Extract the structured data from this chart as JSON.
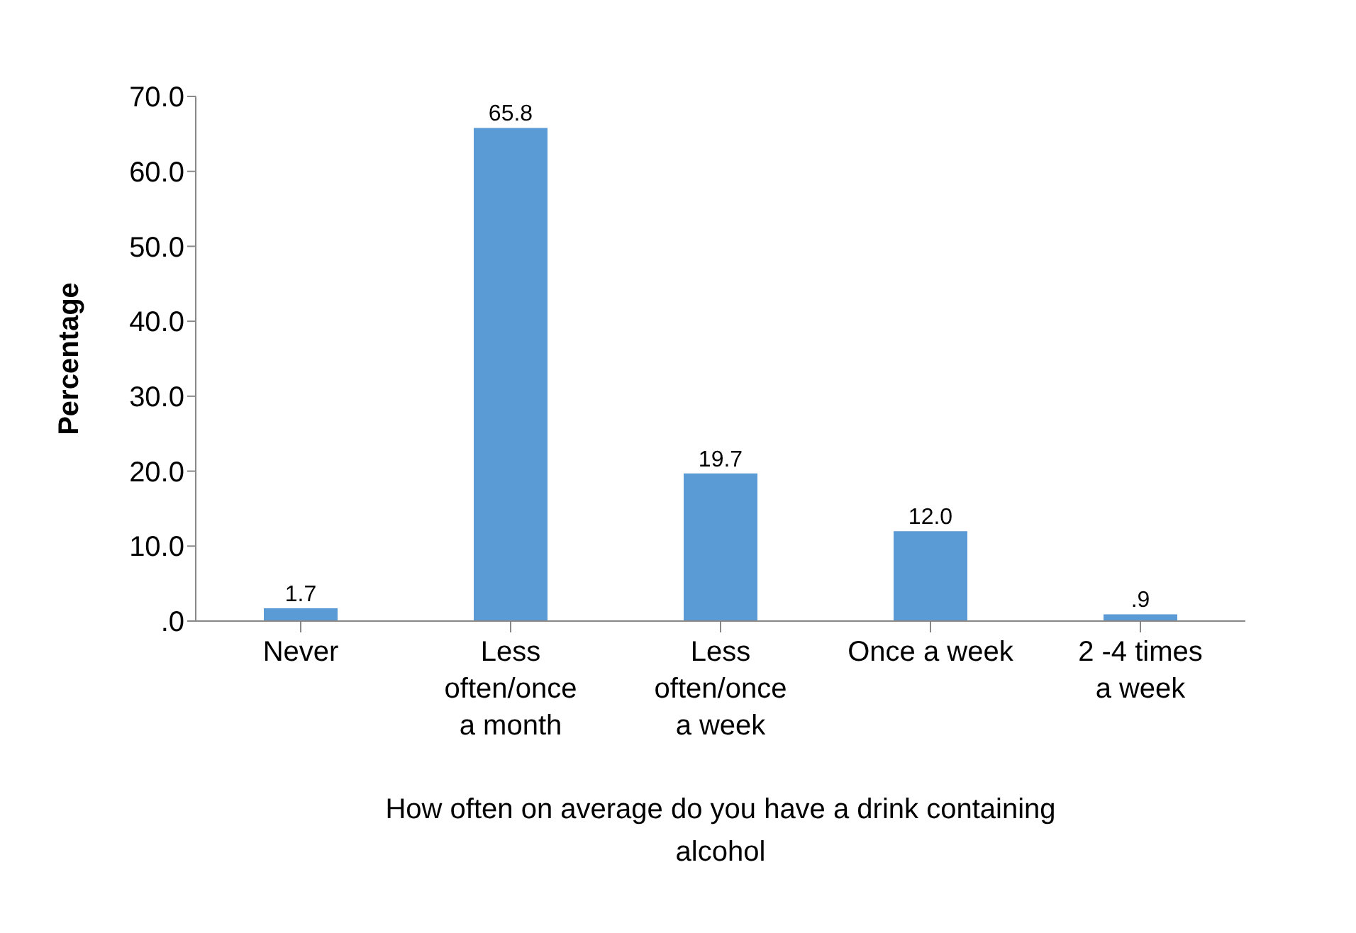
{
  "chart_data": {
    "type": "bar",
    "ylabel": "Percentage",
    "xlabel": "How often on average do you have a drink containing alcohol",
    "categories": [
      "Never",
      "Less often/once a month",
      "Less often/once a week",
      "Once a week",
      "2 -4 times a week"
    ],
    "values": [
      1.7,
      65.8,
      19.7,
      12.0,
      0.9
    ],
    "value_labels": [
      "1.7",
      "65.8",
      "19.7",
      "12.0",
      ".9"
    ],
    "color": "#5b9bd5",
    "ylim": [
      0,
      70
    ],
    "yticks": [
      {
        "value": 0,
        "label": ".0"
      },
      {
        "value": 10,
        "label": "10.0"
      },
      {
        "value": 20,
        "label": "20.0"
      },
      {
        "value": 30,
        "label": "30.0"
      },
      {
        "value": 40,
        "label": "40.0"
      },
      {
        "value": 50,
        "label": "50.0"
      },
      {
        "value": 60,
        "label": "60.0"
      },
      {
        "value": 70,
        "label": "70.0"
      }
    ],
    "grid": false,
    "legend": false
  }
}
